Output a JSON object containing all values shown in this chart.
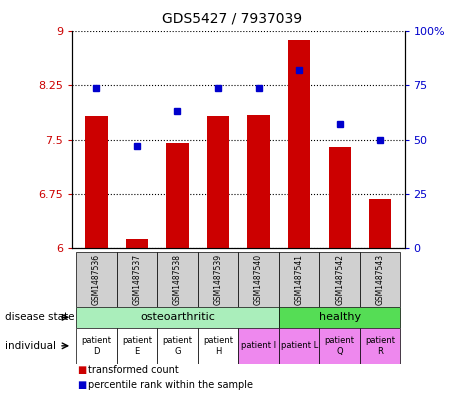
{
  "title": "GDS5427 / 7937039",
  "samples": [
    "GSM1487536",
    "GSM1487537",
    "GSM1487538",
    "GSM1487539",
    "GSM1487540",
    "GSM1487541",
    "GSM1487542",
    "GSM1487543"
  ],
  "transformed_count": [
    7.82,
    6.12,
    7.45,
    7.82,
    7.84,
    8.88,
    7.4,
    6.67
  ],
  "percentile_rank": [
    74,
    47,
    63,
    74,
    74,
    82,
    57,
    50
  ],
  "ylim_left": [
    6,
    9
  ],
  "ylim_right": [
    0,
    100
  ],
  "yticks_left": [
    6,
    6.75,
    7.5,
    8.25,
    9
  ],
  "yticks_right": [
    0,
    25,
    50,
    75,
    100
  ],
  "bar_color": "#cc0000",
  "dot_color": "#0000cc",
  "osteoarthritic_indices": [
    0,
    1,
    2,
    3,
    4
  ],
  "healthy_indices": [
    5,
    6,
    7
  ],
  "disease_state_colors": {
    "osteoarthritic": "#aaeebb",
    "healthy": "#55dd55"
  },
  "individual_labels": [
    "patient\nD",
    "patient\nE",
    "patient\nG",
    "patient\nH",
    "patient I",
    "patient L",
    "patient\nQ",
    "patient\nR"
  ],
  "individual_colors": [
    "#ffffff",
    "#ffffff",
    "#ffffff",
    "#ffffff",
    "#ee88ee",
    "#ee88ee",
    "#ee88ee",
    "#ee88ee"
  ],
  "bar_base": 6.0,
  "bar_width": 0.55
}
